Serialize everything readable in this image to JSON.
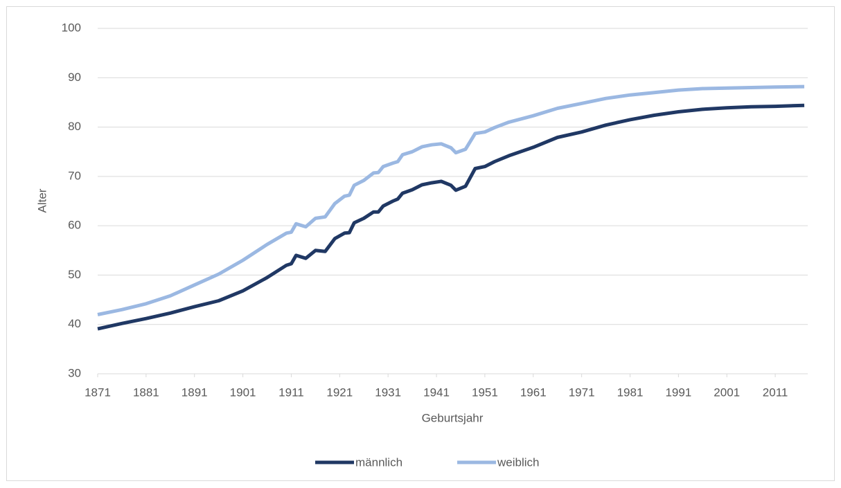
{
  "chart_data": {
    "type": "line",
    "x_label": "Geburtsjahr",
    "y_label": "Alter",
    "x": [
      1871,
      1876,
      1881,
      1886,
      1891,
      1896,
      1901,
      1906,
      1910,
      1911,
      1912,
      1914,
      1916,
      1918,
      1920,
      1922,
      1923,
      1924,
      1926,
      1928,
      1929,
      1930,
      1932,
      1933,
      1934,
      1936,
      1938,
      1940,
      1942,
      1944,
      1945,
      1947,
      1949,
      1951,
      1953,
      1956,
      1961,
      1966,
      1971,
      1976,
      1981,
      1986,
      1991,
      1996,
      2001,
      2006,
      2011,
      2017
    ],
    "series": [
      {
        "name": "männlich",
        "color": "#203864",
        "values": [
          39.1,
          40.2,
          41.2,
          42.3,
          43.6,
          44.8,
          46.8,
          49.5,
          52.0,
          52.3,
          54.0,
          53.4,
          55.0,
          54.8,
          57.4,
          58.5,
          58.6,
          60.6,
          61.5,
          62.8,
          62.8,
          64.0,
          65.0,
          65.4,
          66.6,
          67.3,
          68.3,
          68.7,
          69.0,
          68.2,
          67.2,
          68.0,
          71.6,
          72.0,
          73.0,
          74.2,
          75.9,
          77.9,
          79.0,
          80.4,
          81.5,
          82.4,
          83.1,
          83.6,
          83.9,
          84.1,
          84.2,
          84.4
        ]
      },
      {
        "name": "weiblich",
        "color": "#9bb8e2",
        "values": [
          42.0,
          43.0,
          44.2,
          45.8,
          48.0,
          50.2,
          53.0,
          56.2,
          58.5,
          58.7,
          60.4,
          59.8,
          61.5,
          61.8,
          64.5,
          66.0,
          66.2,
          68.2,
          69.2,
          70.7,
          70.8,
          72.0,
          72.7,
          73.0,
          74.4,
          75.0,
          76.0,
          76.4,
          76.6,
          75.8,
          74.8,
          75.5,
          78.7,
          79.0,
          79.9,
          81.0,
          82.3,
          83.8,
          84.8,
          85.8,
          86.5,
          87.0,
          87.5,
          87.8,
          87.9,
          88.0,
          88.1,
          88.2
        ]
      }
    ],
    "xlim": [
      1871,
      2017
    ],
    "xticks": [
      1871,
      1881,
      1891,
      1901,
      1911,
      1921,
      1931,
      1941,
      1951,
      1961,
      1971,
      1981,
      1991,
      2001,
      2011
    ],
    "ylim": [
      30,
      100
    ],
    "yticks": [
      30,
      40,
      50,
      60,
      70,
      80,
      90,
      100
    ],
    "grid": true,
    "legend": "bottom"
  }
}
